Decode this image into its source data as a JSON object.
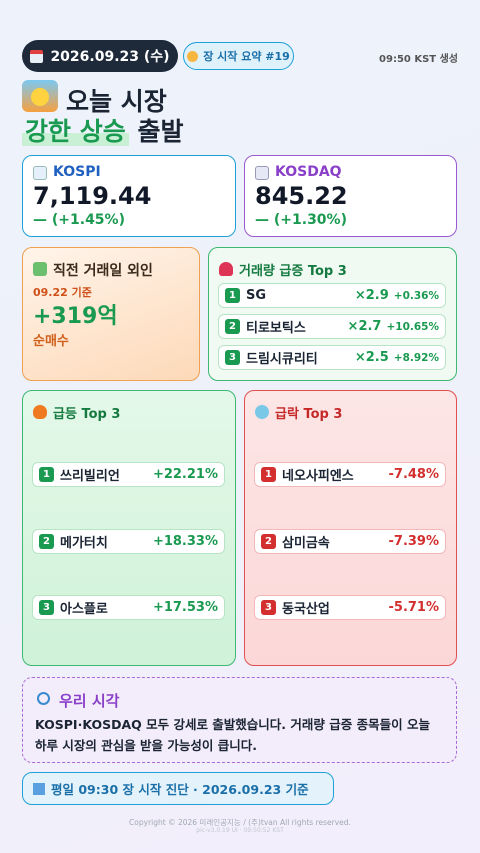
{
  "header": {
    "date": "2026.09.23 (수)",
    "badge": "장 시작 요약 #19",
    "generated": "09:50 KST 생성"
  },
  "title": {
    "line1": "오늘 시장",
    "highlight": "강한 상승",
    "rest": "출발"
  },
  "indices": [
    {
      "name": "KOSPI",
      "value": "7,119.44",
      "change": "— (+1.45%)"
    },
    {
      "name": "KOSDAQ",
      "value": "845.22",
      "change": "— (+1.30%)"
    }
  ],
  "foreign": {
    "title": "직전 거래일 외인",
    "date": "09.22 기준",
    "amount": "+319억",
    "label": "순매수"
  },
  "volume": {
    "title": "거래량 급증 Top 3",
    "items": [
      {
        "rank": "1",
        "name": "SG",
        "ratio": "×2.9",
        "change": "+0.36%"
      },
      {
        "rank": "2",
        "name": "티로보틱스",
        "ratio": "×2.7",
        "change": "+10.65%"
      },
      {
        "rank": "3",
        "name": "드림시큐리티",
        "ratio": "×2.5",
        "change": "+8.92%"
      }
    ]
  },
  "gainers": {
    "title": "급등 Top 3",
    "items": [
      {
        "rank": "1",
        "name": "쓰리빌리언",
        "change": "+22.21%"
      },
      {
        "rank": "2",
        "name": "메가터치",
        "change": "+18.33%"
      },
      {
        "rank": "3",
        "name": "아스플로",
        "change": "+17.53%"
      }
    ]
  },
  "losers": {
    "title": "급락 Top 3",
    "items": [
      {
        "rank": "1",
        "name": "네오사피엔스",
        "change": "-7.48%"
      },
      {
        "rank": "2",
        "name": "삼미금속",
        "change": "-7.39%"
      },
      {
        "rank": "3",
        "name": "동국산업",
        "change": "-5.71%"
      }
    ]
  },
  "insight": {
    "title": "우리 시각",
    "text": "KOSPI·KOSDAQ 모두 강세로 출발했습니다. 거래량 급증 종목들이 오늘 하루 시장의 관심을 받을 가능성이 큽니다."
  },
  "footer": {
    "note": "평일 09:30 장 시작 진단 · 2026.09.23 기준",
    "copyright": "Copyright © 2026 미래인공지능 / (주)tvan All rights reserved.",
    "version": "pic-v3.0.19 UI · 09:50:52 KST"
  }
}
